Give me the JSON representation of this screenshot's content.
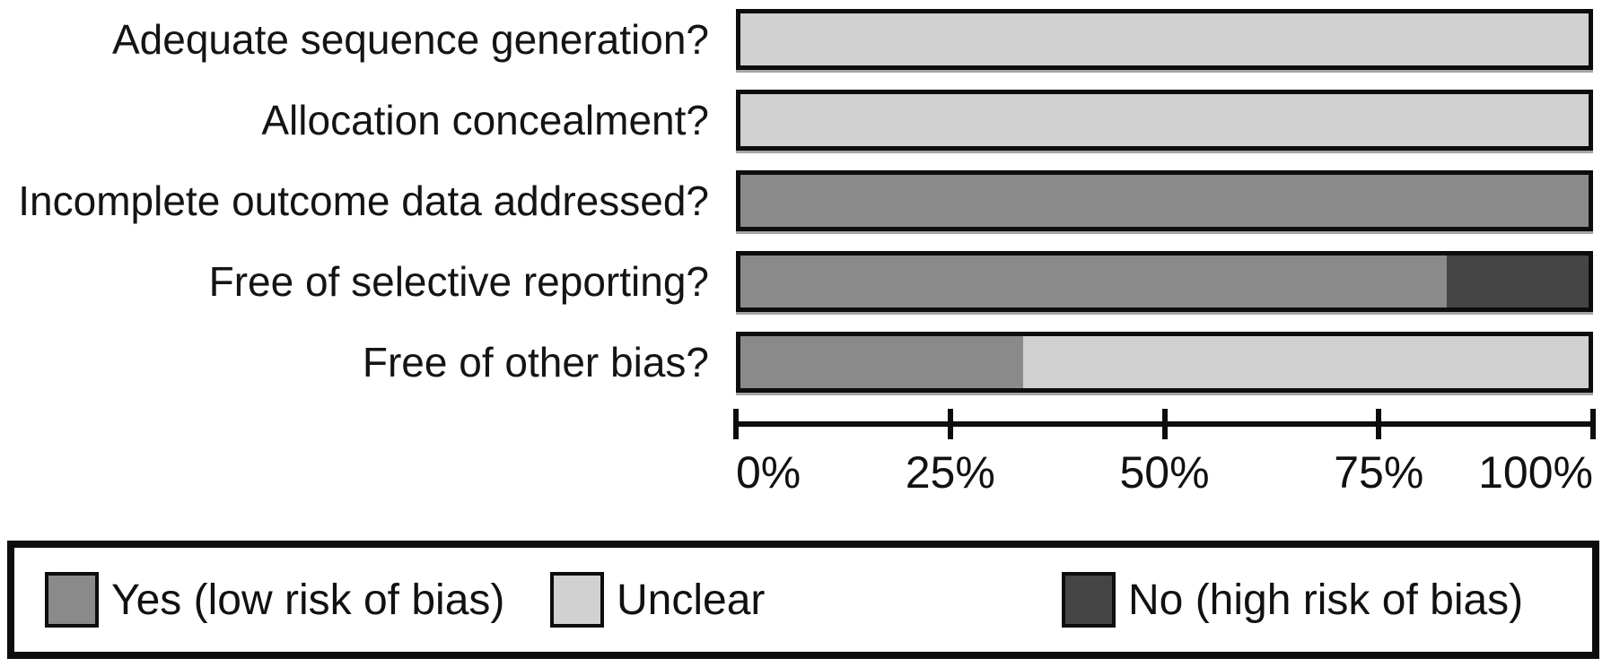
{
  "chart_data": {
    "type": "bar",
    "orientation": "horizontal",
    "stacked": true,
    "title": "",
    "xlabel": "",
    "ylabel": "",
    "xlim": [
      0,
      100
    ],
    "grid": false,
    "legend_position": "bottom",
    "x_ticks": [
      "0%",
      "25%",
      "50%",
      "75%",
      "100%"
    ],
    "categories": [
      "Adequate sequence generation?",
      "Allocation concealment?",
      "Incomplete outcome data addressed?",
      "Free of selective reporting?",
      "Free of other bias?"
    ],
    "series": [
      {
        "name": "Yes (low risk of bias)",
        "key": "yes",
        "color": "#8a8a8a",
        "values": [
          0,
          0,
          100,
          83.3,
          33.3
        ]
      },
      {
        "name": "Unclear",
        "key": "unclear",
        "color": "#d1d1d1",
        "values": [
          100,
          100,
          0,
          0,
          66.7
        ]
      },
      {
        "name": "No (high risk of bias)",
        "key": "no",
        "color": "#454545",
        "values": [
          0,
          0,
          0,
          16.7,
          0
        ]
      }
    ]
  }
}
